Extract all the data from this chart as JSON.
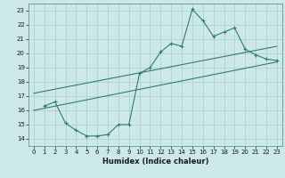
{
  "xlabel": "Humidex (Indice chaleur)",
  "bg_color": "#cde8ea",
  "line_color": "#2e7d6e",
  "grid_color": "#a8cdd0",
  "xlim": [
    -0.5,
    23.5
  ],
  "ylim": [
    13.5,
    23.5
  ],
  "xticks": [
    0,
    1,
    2,
    3,
    4,
    5,
    6,
    7,
    8,
    9,
    10,
    11,
    12,
    13,
    14,
    15,
    16,
    17,
    18,
    19,
    20,
    21,
    22,
    23
  ],
  "yticks": [
    14,
    15,
    16,
    17,
    18,
    19,
    20,
    21,
    22,
    23
  ],
  "line1_x": [
    1,
    2,
    3,
    4,
    5,
    6,
    7,
    8,
    9,
    10,
    11,
    12,
    13,
    14,
    15,
    16,
    17,
    18,
    19,
    20,
    21,
    22,
    23
  ],
  "line1_y": [
    16.3,
    16.6,
    15.1,
    14.6,
    14.2,
    14.2,
    14.3,
    15.0,
    15.0,
    18.6,
    19.0,
    20.1,
    20.7,
    20.5,
    23.1,
    22.3,
    21.2,
    21.5,
    21.8,
    20.3,
    19.9,
    19.6,
    19.5
  ],
  "line2_x": [
    0,
    23
  ],
  "line2_y": [
    16.0,
    19.4
  ],
  "line3_x": [
    0,
    23
  ],
  "line3_y": [
    17.2,
    20.5
  ]
}
